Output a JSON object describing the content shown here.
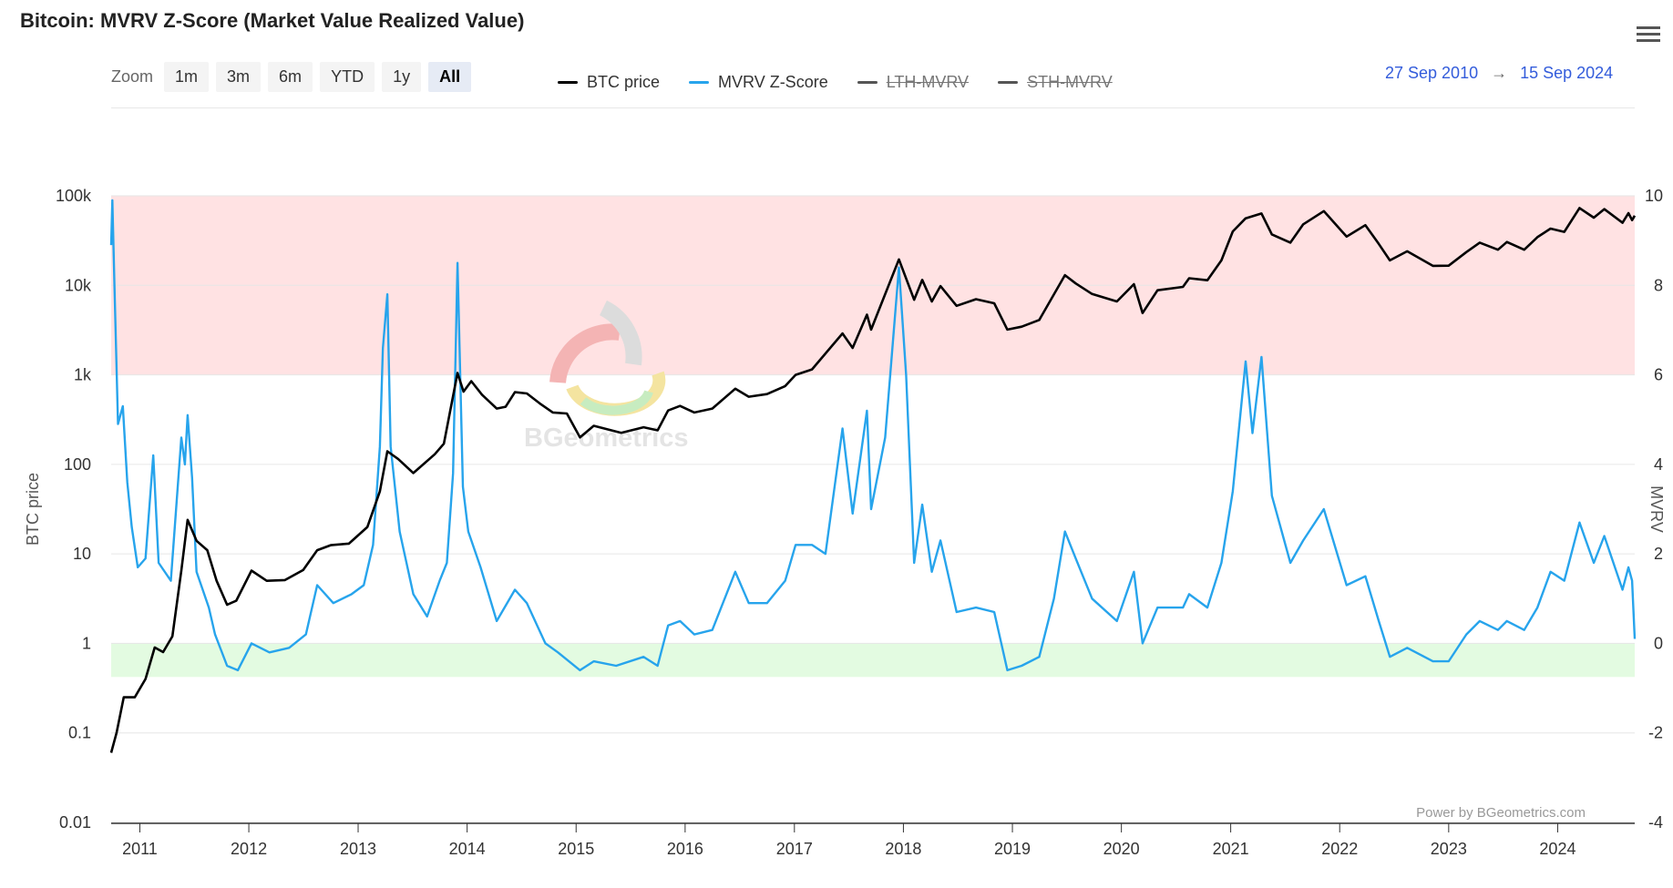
{
  "title": "Bitcoin: MVRV Z-Score (Market Value Realized Value)",
  "zoom": {
    "label": "Zoom",
    "buttons": [
      {
        "label": "1m",
        "active": false
      },
      {
        "label": "3m",
        "active": false
      },
      {
        "label": "6m",
        "active": false
      },
      {
        "label": "YTD",
        "active": false
      },
      {
        "label": "1y",
        "active": false
      },
      {
        "label": "All",
        "active": true
      }
    ]
  },
  "legend": [
    {
      "label": "BTC price",
      "color": "#000000",
      "hidden": false
    },
    {
      "label": "MVRV Z-Score",
      "color": "#27a4ec",
      "hidden": false
    },
    {
      "label": "LTH-MVRV",
      "color": "#555555",
      "hidden": true
    },
    {
      "label": "STH-MVRV",
      "color": "#555555",
      "hidden": true
    }
  ],
  "range": {
    "from": "27 Sep 2010",
    "arrow": "→",
    "to": "15 Sep 2024"
  },
  "credit": "Power by BGeometrics.com",
  "watermark": "BGeometrics",
  "chart_data": {
    "type": "line",
    "x_axis": {
      "ticks": [
        "2011",
        "2012",
        "2013",
        "2014",
        "2015",
        "2016",
        "2017",
        "2018",
        "2019",
        "2020",
        "2021",
        "2022",
        "2023",
        "2024"
      ],
      "range": [
        "2010-09-27",
        "2024-09-15"
      ]
    },
    "y_left": {
      "label": "BTC price",
      "scale": "log",
      "range": [
        0.01,
        100000
      ],
      "ticks": [
        "0.01",
        "0.1",
        "1",
        "10",
        "100",
        "1k",
        "10k",
        "100k"
      ]
    },
    "y_right": {
      "label": "MVRV",
      "range": [
        -4,
        10
      ],
      "ticks": [
        "-4",
        "-2",
        "0",
        "2",
        "4",
        "6",
        "8",
        "10"
      ]
    },
    "bands": [
      {
        "name": "overvalued",
        "axis": "right",
        "from": 6,
        "to": 10,
        "color": "#ffe2e3"
      },
      {
        "name": "undervalued",
        "axis": "right",
        "from": -0.75,
        "to": 0,
        "color": "#e3fbe1"
      }
    ],
    "series": [
      {
        "name": "BTC price",
        "axis": "left",
        "color": "#000000",
        "points": [
          [
            "2010-09-27",
            0.06
          ],
          [
            "2010-10-15",
            0.1
          ],
          [
            "2010-11-08",
            0.25
          ],
          [
            "2010-12-15",
            0.25
          ],
          [
            "2011-01-20",
            0.4
          ],
          [
            "2011-02-20",
            0.9
          ],
          [
            "2011-03-20",
            0.8
          ],
          [
            "2011-04-20",
            1.2
          ],
          [
            "2011-05-20",
            6.5
          ],
          [
            "2011-06-10",
            24
          ],
          [
            "2011-07-10",
            14
          ],
          [
            "2011-08-15",
            11
          ],
          [
            "2011-09-15",
            5
          ],
          [
            "2011-10-20",
            2.7
          ],
          [
            "2011-11-20",
            3
          ],
          [
            "2012-01-10",
            6.5
          ],
          [
            "2012-03-01",
            5
          ],
          [
            "2012-05-01",
            5.1
          ],
          [
            "2012-07-01",
            6.6
          ],
          [
            "2012-08-17",
            11
          ],
          [
            "2012-10-01",
            12.5
          ],
          [
            "2012-12-01",
            13
          ],
          [
            "2013-02-01",
            20
          ],
          [
            "2013-03-15",
            50
          ],
          [
            "2013-04-09",
            140
          ],
          [
            "2013-05-15",
            115
          ],
          [
            "2013-07-05",
            80
          ],
          [
            "2013-09-15",
            130
          ],
          [
            "2013-10-15",
            170
          ],
          [
            "2013-11-30",
            1050
          ],
          [
            "2013-12-20",
            650
          ],
          [
            "2014-01-15",
            850
          ],
          [
            "2014-02-20",
            600
          ],
          [
            "2014-04-10",
            420
          ],
          [
            "2014-05-10",
            440
          ],
          [
            "2014-06-10",
            640
          ],
          [
            "2014-07-20",
            620
          ],
          [
            "2014-09-01",
            480
          ],
          [
            "2014-10-15",
            380
          ],
          [
            "2014-12-01",
            370
          ],
          [
            "2015-01-14",
            200
          ],
          [
            "2015-03-01",
            270
          ],
          [
            "2015-06-01",
            225
          ],
          [
            "2015-08-15",
            260
          ],
          [
            "2015-10-01",
            240
          ],
          [
            "2015-11-05",
            400
          ],
          [
            "2015-12-15",
            450
          ],
          [
            "2016-02-01",
            380
          ],
          [
            "2016-04-01",
            420
          ],
          [
            "2016-06-17",
            700
          ],
          [
            "2016-08-01",
            570
          ],
          [
            "2016-10-01",
            610
          ],
          [
            "2016-12-01",
            750
          ],
          [
            "2017-01-05",
            1000
          ],
          [
            "2017-03-01",
            1150
          ],
          [
            "2017-06-11",
            2900
          ],
          [
            "2017-07-15",
            2000
          ],
          [
            "2017-09-01",
            4700
          ],
          [
            "2017-09-15",
            3200
          ],
          [
            "2017-12-17",
            19500
          ],
          [
            "2018-02-06",
            6900
          ],
          [
            "2018-03-05",
            11500
          ],
          [
            "2018-04-06",
            6600
          ],
          [
            "2018-05-05",
            9800
          ],
          [
            "2018-06-28",
            5900
          ],
          [
            "2018-09-01",
            7000
          ],
          [
            "2018-11-01",
            6300
          ],
          [
            "2018-12-15",
            3200
          ],
          [
            "2019-02-01",
            3450
          ],
          [
            "2019-04-01",
            4100
          ],
          [
            "2019-06-26",
            13000
          ],
          [
            "2019-08-01",
            10500
          ],
          [
            "2019-09-25",
            8000
          ],
          [
            "2019-12-17",
            6600
          ],
          [
            "2020-02-12",
            10300
          ],
          [
            "2020-03-12",
            4900
          ],
          [
            "2020-05-01",
            8800
          ],
          [
            "2020-07-25",
            9600
          ],
          [
            "2020-08-15",
            12000
          ],
          [
            "2020-10-15",
            11400
          ],
          [
            "2020-12-01",
            19000
          ],
          [
            "2021-01-08",
            40000
          ],
          [
            "2021-02-20",
            56000
          ],
          [
            "2021-04-14",
            63500
          ],
          [
            "2021-05-19",
            37000
          ],
          [
            "2021-07-20",
            30000
          ],
          [
            "2021-09-01",
            48000
          ],
          [
            "2021-11-09",
            67500
          ],
          [
            "2022-01-24",
            35000
          ],
          [
            "2022-03-28",
            47000
          ],
          [
            "2022-05-12",
            29000
          ],
          [
            "2022-06-18",
            19000
          ],
          [
            "2022-08-15",
            24000
          ],
          [
            "2022-11-09",
            16500
          ],
          [
            "2023-01-01",
            16600
          ],
          [
            "2023-03-01",
            23500
          ],
          [
            "2023-04-15",
            30000
          ],
          [
            "2023-06-15",
            25000
          ],
          [
            "2023-07-15",
            30500
          ],
          [
            "2023-09-11",
            25000
          ],
          [
            "2023-10-25",
            34500
          ],
          [
            "2023-12-08",
            43000
          ],
          [
            "2024-01-23",
            39500
          ],
          [
            "2024-03-14",
            73000
          ],
          [
            "2024-05-01",
            57000
          ],
          [
            "2024-06-05",
            71000
          ],
          [
            "2024-08-05",
            50000
          ],
          [
            "2024-08-25",
            64000
          ],
          [
            "2024-09-06",
            53500
          ],
          [
            "2024-09-15",
            60000
          ]
        ]
      },
      {
        "name": "MVRV Z-Score",
        "axis": "right",
        "color": "#27a4ec",
        "points": [
          [
            "2010-09-27",
            8.9
          ],
          [
            "2010-10-01",
            9.9
          ],
          [
            "2010-10-08",
            8.0
          ],
          [
            "2010-10-20",
            4.9
          ],
          [
            "2010-11-05",
            5.3
          ],
          [
            "2010-11-20",
            3.6
          ],
          [
            "2010-12-05",
            2.6
          ],
          [
            "2010-12-25",
            1.7
          ],
          [
            "2011-01-20",
            1.9
          ],
          [
            "2011-02-15",
            4.2
          ],
          [
            "2011-03-05",
            1.8
          ],
          [
            "2011-04-15",
            1.4
          ],
          [
            "2011-05-20",
            4.6
          ],
          [
            "2011-06-01",
            4.0
          ],
          [
            "2011-06-10",
            5.1
          ],
          [
            "2011-06-25",
            3.7
          ],
          [
            "2011-07-10",
            1.6
          ],
          [
            "2011-08-20",
            0.8
          ],
          [
            "2011-09-10",
            0.2
          ],
          [
            "2011-10-20",
            -0.5
          ],
          [
            "2011-11-25",
            -0.6
          ],
          [
            "2012-01-10",
            0.0
          ],
          [
            "2012-03-10",
            -0.2
          ],
          [
            "2012-05-15",
            -0.1
          ],
          [
            "2012-07-10",
            0.2
          ],
          [
            "2012-08-17",
            1.3
          ],
          [
            "2012-10-10",
            0.9
          ],
          [
            "2012-12-10",
            1.1
          ],
          [
            "2013-01-20",
            1.3
          ],
          [
            "2013-02-20",
            2.2
          ],
          [
            "2013-03-15",
            4.4
          ],
          [
            "2013-03-25",
            6.6
          ],
          [
            "2013-04-09",
            7.8
          ],
          [
            "2013-04-20",
            4.4
          ],
          [
            "2013-05-20",
            2.5
          ],
          [
            "2013-07-05",
            1.1
          ],
          [
            "2013-08-20",
            0.6
          ],
          [
            "2013-10-01",
            1.4
          ],
          [
            "2013-10-25",
            1.8
          ],
          [
            "2013-11-15",
            3.8
          ],
          [
            "2013-11-30",
            8.5
          ],
          [
            "2013-12-18",
            3.5
          ],
          [
            "2014-01-05",
            2.5
          ],
          [
            "2014-02-15",
            1.7
          ],
          [
            "2014-04-10",
            0.5
          ],
          [
            "2014-06-10",
            1.2
          ],
          [
            "2014-07-20",
            0.9
          ],
          [
            "2014-09-20",
            0.0
          ],
          [
            "2014-11-01",
            -0.2
          ],
          [
            "2015-01-14",
            -0.6
          ],
          [
            "2015-03-01",
            -0.4
          ],
          [
            "2015-05-15",
            -0.5
          ],
          [
            "2015-08-15",
            -0.3
          ],
          [
            "2015-10-01",
            -0.5
          ],
          [
            "2015-11-05",
            0.4
          ],
          [
            "2015-12-15",
            0.5
          ],
          [
            "2016-02-01",
            0.2
          ],
          [
            "2016-04-01",
            0.3
          ],
          [
            "2016-06-17",
            1.6
          ],
          [
            "2016-08-01",
            0.9
          ],
          [
            "2016-10-01",
            0.9
          ],
          [
            "2016-12-01",
            1.4
          ],
          [
            "2017-01-05",
            2.2
          ],
          [
            "2017-03-01",
            2.2
          ],
          [
            "2017-04-15",
            2.0
          ],
          [
            "2017-06-11",
            4.8
          ],
          [
            "2017-07-15",
            2.9
          ],
          [
            "2017-09-01",
            5.2
          ],
          [
            "2017-09-15",
            3.0
          ],
          [
            "2017-11-01",
            4.6
          ],
          [
            "2017-12-17",
            8.4
          ],
          [
            "2018-01-10",
            6.0
          ],
          [
            "2018-02-06",
            1.8
          ],
          [
            "2018-03-05",
            3.1
          ],
          [
            "2018-04-06",
            1.6
          ],
          [
            "2018-05-05",
            2.3
          ],
          [
            "2018-06-28",
            0.7
          ],
          [
            "2018-09-01",
            0.8
          ],
          [
            "2018-11-01",
            0.7
          ],
          [
            "2018-12-15",
            -0.6
          ],
          [
            "2019-02-01",
            -0.5
          ],
          [
            "2019-04-01",
            -0.3
          ],
          [
            "2019-05-20",
            1.0
          ],
          [
            "2019-06-26",
            2.5
          ],
          [
            "2019-08-01",
            1.9
          ],
          [
            "2019-09-25",
            1.0
          ],
          [
            "2019-12-17",
            0.5
          ],
          [
            "2020-02-12",
            1.6
          ],
          [
            "2020-03-12",
            0.0
          ],
          [
            "2020-05-01",
            0.8
          ],
          [
            "2020-07-25",
            0.8
          ],
          [
            "2020-08-15",
            1.1
          ],
          [
            "2020-10-15",
            0.8
          ],
          [
            "2020-12-01",
            1.8
          ],
          [
            "2021-01-08",
            3.4
          ],
          [
            "2021-02-20",
            6.3
          ],
          [
            "2021-03-15",
            4.7
          ],
          [
            "2021-04-14",
            6.4
          ],
          [
            "2021-05-19",
            3.3
          ],
          [
            "2021-07-20",
            1.8
          ],
          [
            "2021-09-01",
            2.3
          ],
          [
            "2021-11-09",
            3.0
          ],
          [
            "2022-01-24",
            1.3
          ],
          [
            "2022-03-28",
            1.5
          ],
          [
            "2022-05-12",
            0.5
          ],
          [
            "2022-06-18",
            -0.3
          ],
          [
            "2022-08-15",
            -0.1
          ],
          [
            "2022-11-09",
            -0.4
          ],
          [
            "2023-01-01",
            -0.4
          ],
          [
            "2023-03-01",
            0.2
          ],
          [
            "2023-04-15",
            0.5
          ],
          [
            "2023-06-15",
            0.3
          ],
          [
            "2023-07-15",
            0.5
          ],
          [
            "2023-09-11",
            0.3
          ],
          [
            "2023-10-25",
            0.8
          ],
          [
            "2023-12-08",
            1.6
          ],
          [
            "2024-01-23",
            1.4
          ],
          [
            "2024-03-14",
            2.7
          ],
          [
            "2024-05-01",
            1.8
          ],
          [
            "2024-06-05",
            2.4
          ],
          [
            "2024-08-05",
            1.2
          ],
          [
            "2024-08-25",
            1.7
          ],
          [
            "2024-09-06",
            1.4
          ],
          [
            "2024-09-15",
            0.1
          ]
        ]
      }
    ]
  }
}
